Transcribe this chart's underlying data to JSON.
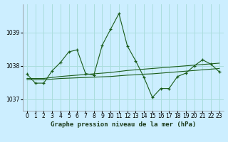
{
  "title": "Graphe pression niveau de la mer (hPa)",
  "bg_color": "#cceeff",
  "grid_color": "#aadddd",
  "line_color": "#1a5c1a",
  "x_values": [
    0,
    1,
    2,
    3,
    4,
    5,
    6,
    7,
    8,
    9,
    10,
    11,
    12,
    13,
    14,
    15,
    16,
    17,
    18,
    19,
    20,
    21,
    22,
    23
  ],
  "y_main": [
    1037.75,
    1037.48,
    1037.48,
    1037.85,
    1038.1,
    1038.42,
    1038.48,
    1037.77,
    1037.72,
    1038.62,
    1039.1,
    1039.57,
    1038.6,
    1038.15,
    1037.65,
    1037.05,
    1037.32,
    1037.32,
    1037.68,
    1037.78,
    1038.0,
    1038.18,
    1038.05,
    1037.82
  ],
  "y_smooth1": [
    1037.58,
    1037.58,
    1037.58,
    1037.6,
    1037.62,
    1037.63,
    1037.64,
    1037.65,
    1037.66,
    1037.67,
    1037.68,
    1037.7,
    1037.72,
    1037.73,
    1037.75,
    1037.76,
    1037.78,
    1037.8,
    1037.82,
    1037.84,
    1037.86,
    1037.88,
    1037.9,
    1037.92
  ],
  "y_smooth2": [
    1037.62,
    1037.62,
    1037.62,
    1037.65,
    1037.68,
    1037.7,
    1037.72,
    1037.74,
    1037.76,
    1037.78,
    1037.8,
    1037.83,
    1037.86,
    1037.88,
    1037.9,
    1037.92,
    1037.94,
    1037.96,
    1037.98,
    1038.0,
    1038.02,
    1038.04,
    1038.06,
    1038.08
  ],
  "yticks": [
    1037,
    1038,
    1039
  ],
  "ylim": [
    1036.65,
    1039.85
  ],
  "xlim": [
    -0.5,
    23.5
  ],
  "title_fontsize": 6.5,
  "tick_fontsize": 5.5
}
